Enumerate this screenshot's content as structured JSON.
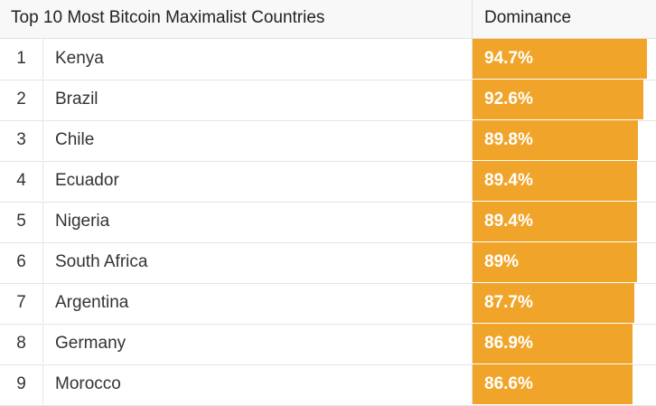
{
  "header": {
    "title": "Top 10 Most Bitcoin Maximalist Countries",
    "dominance_label": "Dominance"
  },
  "bar_color": "#f0a52a",
  "chart_data": {
    "type": "table",
    "title": "Top 10 Most Bitcoin Maximalist Countries",
    "columns": [
      "",
      "",
      "Dominance"
    ],
    "rows": [
      {
        "rank": "1",
        "country": "Kenya",
        "value": 94.7,
        "label": "94.7%"
      },
      {
        "rank": "2",
        "country": "Brazil",
        "value": 92.6,
        "label": "92.6%"
      },
      {
        "rank": "3",
        "country": "Chile",
        "value": 89.8,
        "label": "89.8%"
      },
      {
        "rank": "4",
        "country": "Ecuador",
        "value": 89.4,
        "label": "89.4%"
      },
      {
        "rank": "5",
        "country": "Nigeria",
        "value": 89.4,
        "label": "89.4%"
      },
      {
        "rank": "6",
        "country": "South Africa",
        "value": 89,
        "label": "89%"
      },
      {
        "rank": "7",
        "country": "Argentina",
        "value": 87.7,
        "label": "87.7%"
      },
      {
        "rank": "8",
        "country": "Germany",
        "value": 86.9,
        "label": "86.9%"
      },
      {
        "rank": "9",
        "country": "Morocco",
        "value": 86.6,
        "label": "86.6%"
      }
    ]
  }
}
